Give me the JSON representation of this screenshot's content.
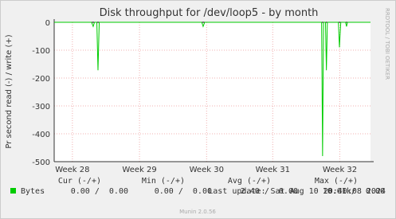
{
  "chart_data": {
    "type": "line",
    "title": "Disk throughput for /dev/loop5 - by month",
    "y_label": "Pr second read (-) / write (+)",
    "side_label": "RRDTOOL / TOBI OETIKER",
    "x": [
      0,
      3.9,
      4.07,
      4.2,
      4.45,
      4.57,
      4.7,
      15.4,
      15.54,
      15.7,
      27.9,
      28.0,
      28.1,
      28.3,
      28.4,
      28.5,
      29.65,
      29.76,
      29.9,
      30.4,
      30.5,
      30.6,
      33
    ],
    "series": [
      {
        "name": "Bytes",
        "color": "#00cc00",
        "values": [
          0,
          0,
          -15,
          0,
          0,
          -172,
          0,
          0,
          -15,
          0,
          0,
          -480,
          0,
          0,
          -172,
          0,
          0,
          -90,
          0,
          0,
          -15,
          0,
          0
        ]
      }
    ],
    "xlim": [
      0,
      33
    ],
    "ylim": [
      -500,
      0
    ],
    "xticks": [
      {
        "value": 1.9,
        "label": "Week 28"
      },
      {
        "value": 8.9,
        "label": "Week 29"
      },
      {
        "value": 15.9,
        "label": "Week 30"
      },
      {
        "value": 22.8,
        "label": "Week 31"
      },
      {
        "value": 29.8,
        "label": "Week 32"
      }
    ],
    "yticks": [
      -500,
      -400,
      -300,
      -200,
      -100,
      0
    ],
    "grid": true,
    "legend_table": {
      "headers": [
        "Cur (-/+)",
        "Min (-/+)",
        "Avg (-/+)",
        "Max (-/+)"
      ],
      "rows": [
        [
          "0.00 /  0.00",
          "0.00 /  0.00",
          "2.40 /  0.00",
          "10.61k/  0.00"
        ]
      ]
    },
    "last_update": "Last update: Sat Aug 10 20:40:08 2024",
    "footer": "Munin 2.0.56"
  }
}
